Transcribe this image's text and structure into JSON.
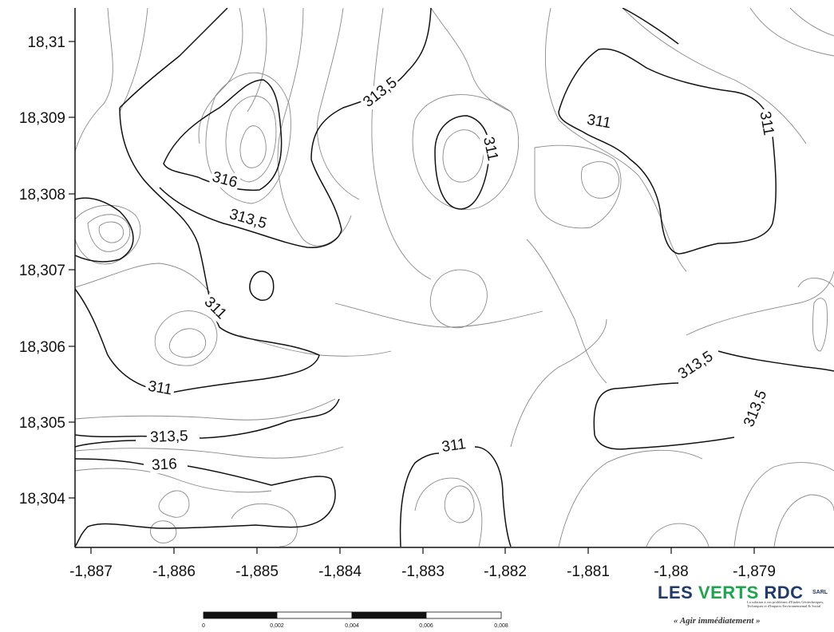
{
  "map": {
    "x_ticks": [
      "-1,887",
      "-1,886",
      "-1,885",
      "-1,884",
      "-1,883",
      "-1,882",
      "-1,881",
      "-1,88",
      "-1,879"
    ],
    "y_ticks": [
      "18,31",
      "18,309",
      "18,308",
      "18,307",
      "18,306",
      "18,305",
      "18,304"
    ],
    "contour_labels": {
      "l1": "313,5",
      "l2": "311",
      "l3": "311",
      "l4": "311",
      "l5": "316",
      "l6": "313,5",
      "l7": "311",
      "l8": "311",
      "l9": "313,5",
      "l10": "313,5",
      "l11": "313,5",
      "l12": "316",
      "l13": "311"
    }
  },
  "scale_bar": {
    "labels": [
      "0",
      "0,002",
      "0,004",
      "0,006",
      "0,008"
    ]
  },
  "logo": {
    "les": "LES ",
    "verts": "VERTS",
    "rdc": " RDC",
    "sarl": "SARL",
    "small_text": "La solution à vos problèmes d'Etudes Géotechniques, Techniques et d'Impacts Environnemental & Social",
    "tagline": "« Agir immédiatement »"
  },
  "colors": {
    "thick_contour": "#111111",
    "thin_contour": "#8a8a8a",
    "logo_blue": "#1f3a6e",
    "logo_green": "#1aa64a"
  }
}
